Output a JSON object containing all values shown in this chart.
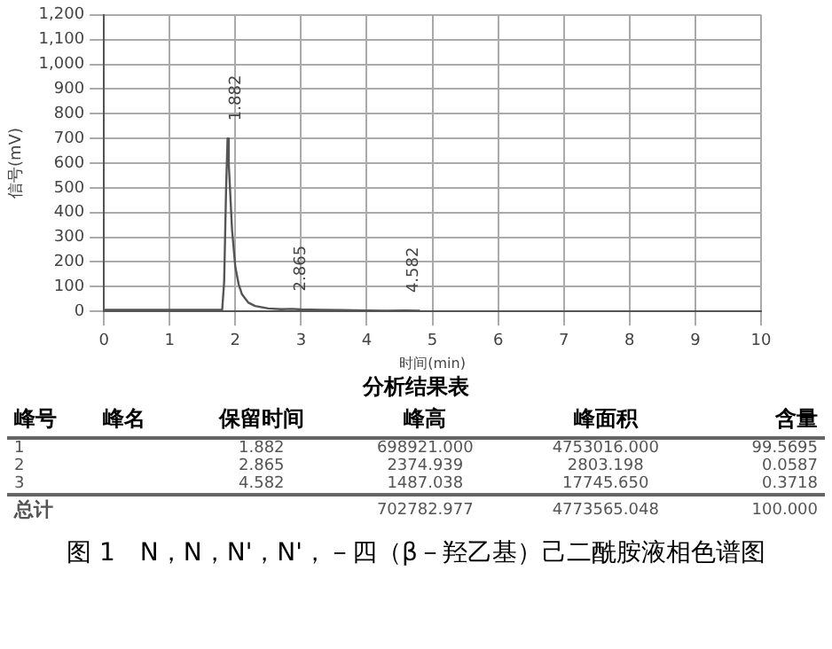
{
  "chart_data": [
    {
      "type": "line",
      "xlabel": "时间(min)",
      "ylabel": "信号(mV)",
      "x": [
        0,
        0.5,
        1.0,
        1.5,
        1.8,
        1.83,
        1.86,
        1.882,
        1.9,
        1.95,
        2.0,
        2.05,
        2.1,
        2.2,
        2.3,
        2.5,
        2.7,
        2.865,
        3.0,
        3.3,
        3.6,
        4.0,
        4.3,
        4.582,
        4.8
      ],
      "series": [
        {
          "color": "#555555",
          "values": [
            6,
            6,
            6,
            6,
            6,
            120,
            500,
            700,
            600,
            330,
            180,
            110,
            70,
            35,
            22,
            12,
            9,
            10,
            8,
            6,
            5,
            4,
            3,
            4,
            3
          ]
        }
      ],
      "xlim": [
        0,
        10
      ],
      "xticks": [
        0,
        1,
        2,
        3,
        4,
        5,
        6,
        7,
        8,
        9,
        10
      ],
      "ylim": [
        0,
        1200
      ],
      "yticks": [
        0,
        100,
        200,
        300,
        400,
        500,
        600,
        700,
        800,
        900,
        {
          "value": 1000,
          "label": "1,000"
        },
        {
          "value": 1100,
          "label": "1,100"
        },
        {
          "value": 1200,
          "label": "1,200"
        }
      ],
      "grid": true,
      "line_style": "solid",
      "marker": "none",
      "annotations": [
        {
          "text": "1.882",
          "x": 1.882,
          "y": 700
        },
        {
          "text": "2.865",
          "x": 2.865,
          "y": 10
        },
        {
          "text": "4.582",
          "x": 4.582,
          "y": 4
        }
      ]
    },
    {
      "type": "other",
      "title": "分析结果表",
      "categories": [
        "峰号",
        "峰名",
        "保留时间",
        "峰高",
        "峰面积",
        "含量"
      ],
      "cell_labels": [
        [
          "1",
          null,
          "1.882",
          "698921.000",
          "4753016.000",
          "99.5695"
        ],
        [
          "2",
          null,
          "2.865",
          "2374.939",
          "2803.198",
          "0.0587"
        ],
        [
          "3",
          null,
          "4.582",
          "1487.038",
          "17745.650",
          "0.3718"
        ],
        [
          "总计",
          null,
          null,
          "702782.977",
          "4773565.048",
          "100.000"
        ]
      ],
      "annotations": [
        "图 1　N，N，N'，N'，－四（β－羟乙基）己二酰胺液相色谱图"
      ]
    }
  ]
}
